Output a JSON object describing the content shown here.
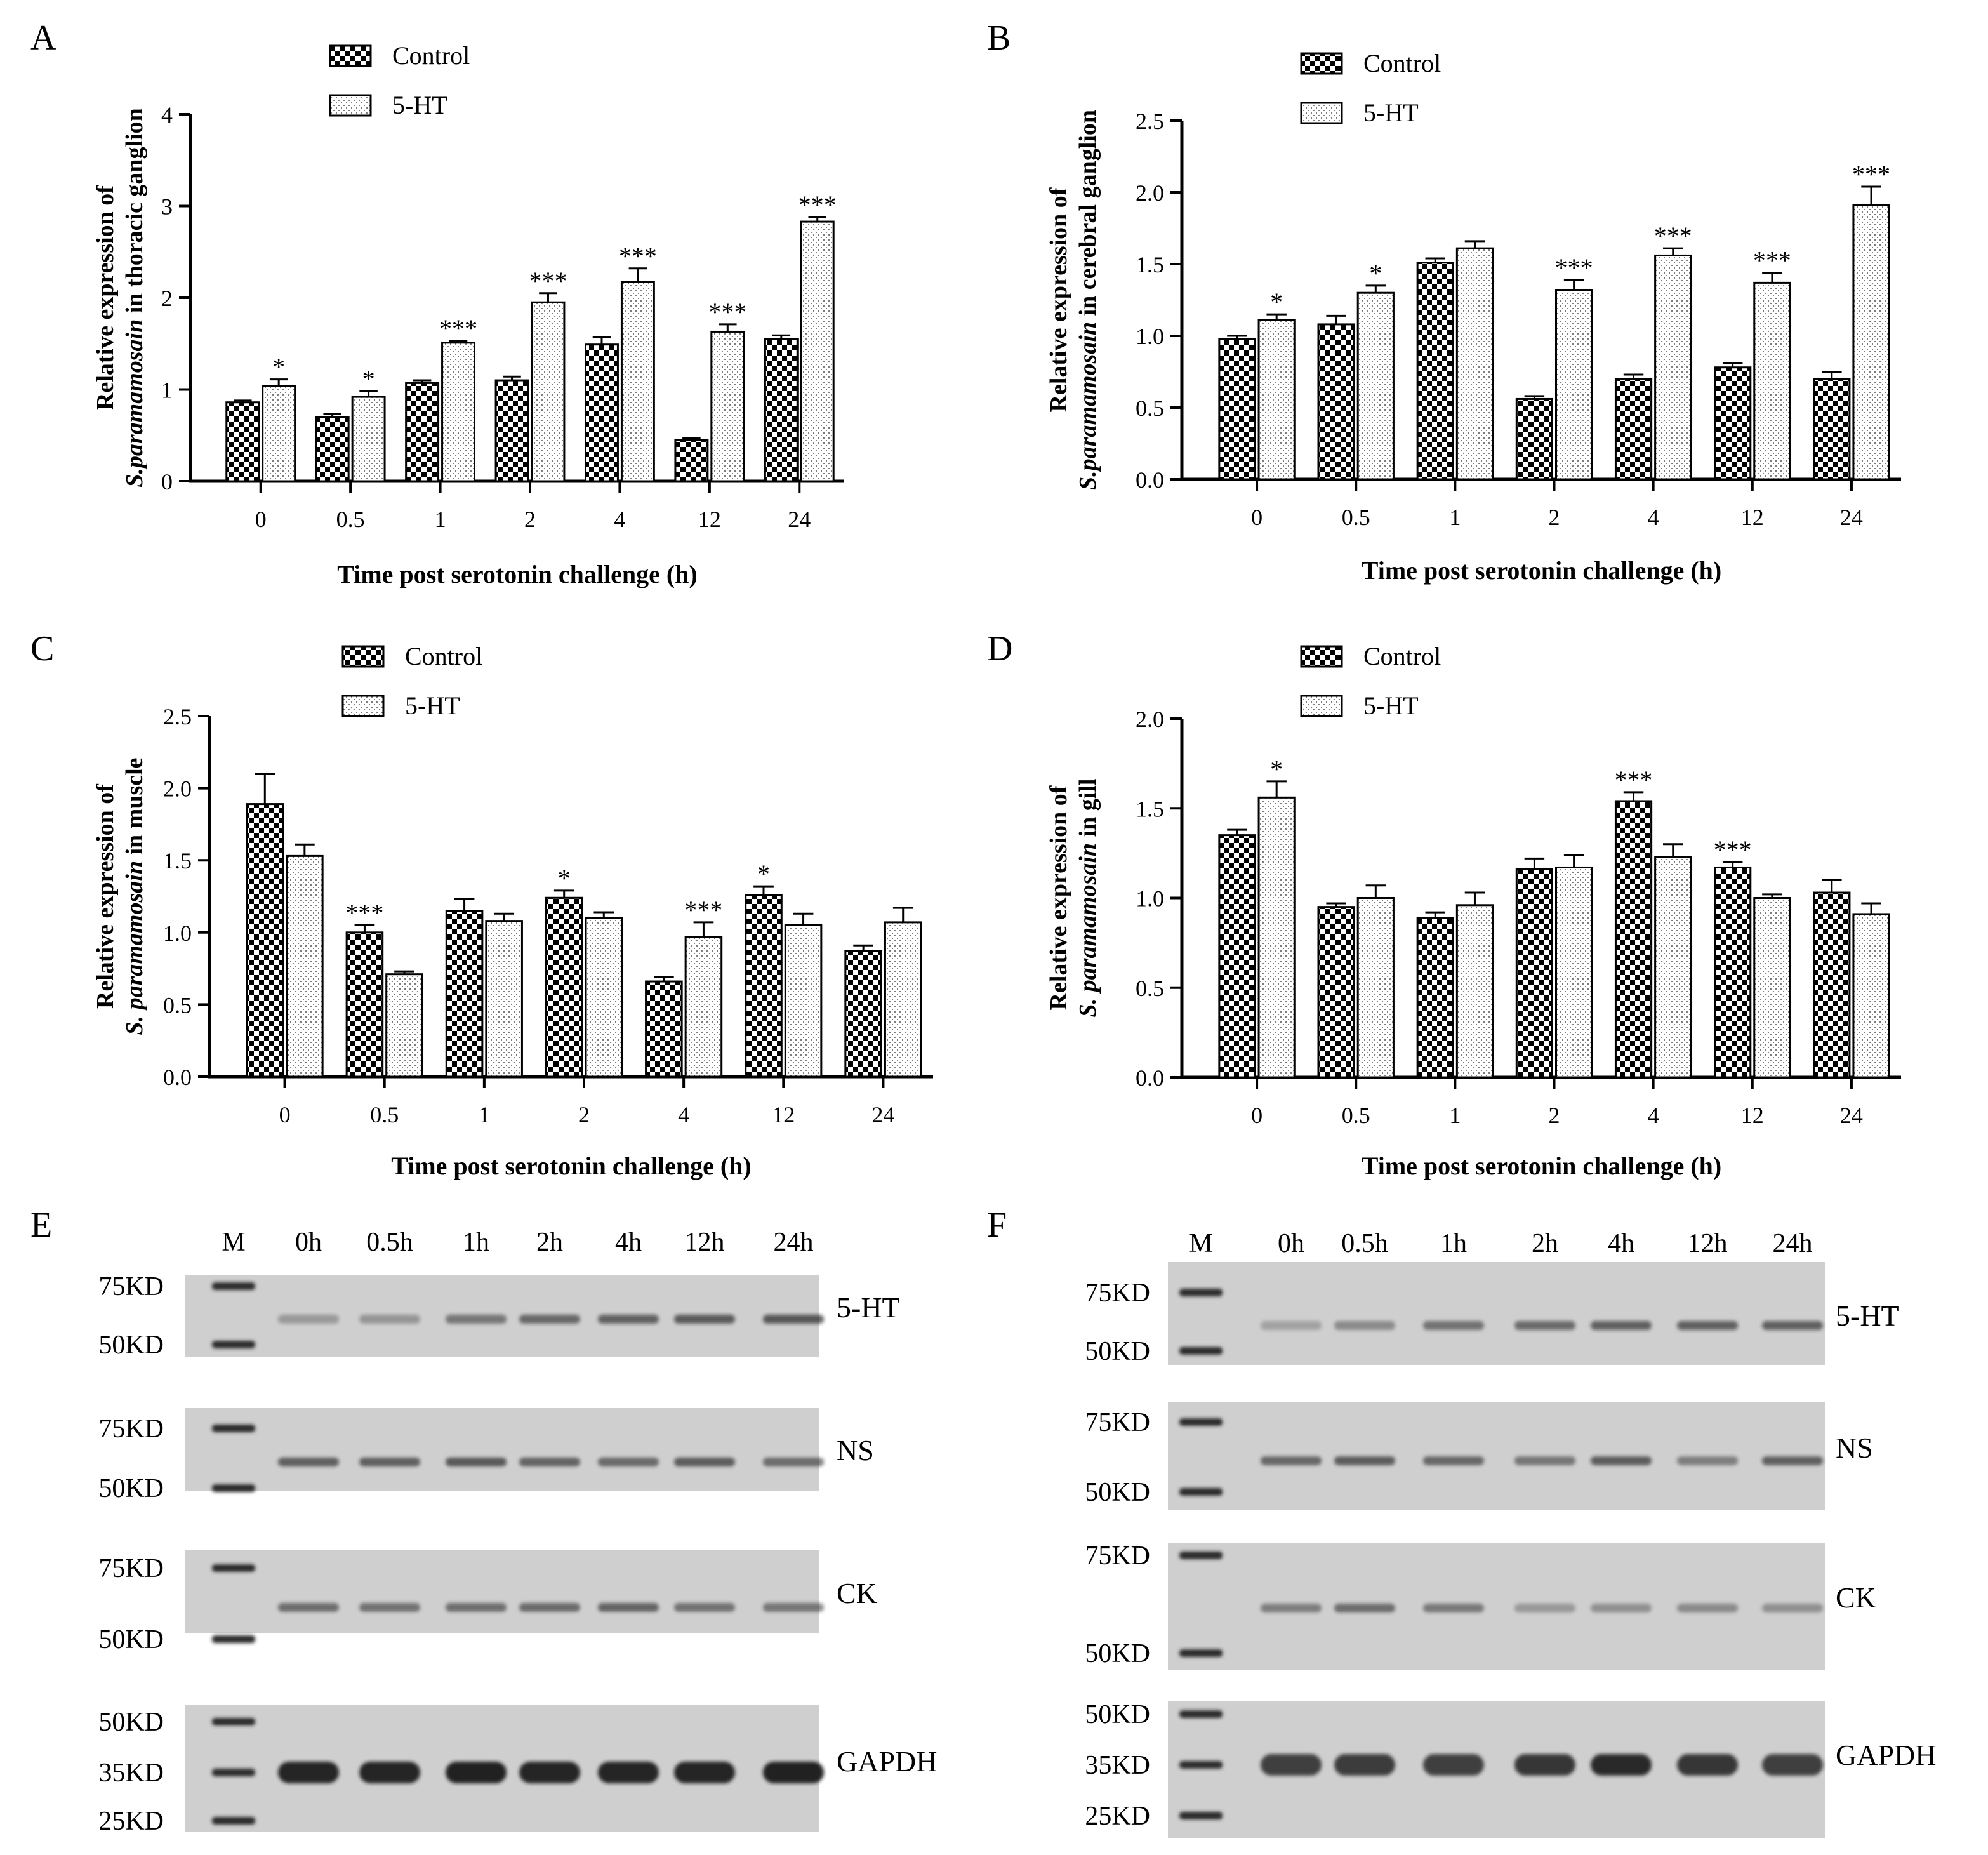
{
  "figure": {
    "colors": {
      "axis": "#000000",
      "control_fill": "checkerboard-black-white",
      "treatment_fill": "light-dotted-white",
      "blot_background": "#cfcfcf",
      "band": "#1a1a1a"
    }
  },
  "chart_data": [
    {
      "panel": "A",
      "type": "bar",
      "categories": [
        "0",
        "0.5",
        "1",
        "2",
        "4",
        "12",
        "24"
      ],
      "series": [
        {
          "name": "Control",
          "values": [
            0.86,
            0.7,
            1.07,
            1.1,
            1.49,
            0.45,
            1.55
          ],
          "errors": [
            0.02,
            0.03,
            0.03,
            0.04,
            0.08,
            0.02,
            0.04
          ]
        },
        {
          "name": "5-HT",
          "values": [
            1.04,
            0.92,
            1.51,
            1.95,
            2.17,
            1.63,
            2.83
          ],
          "errors": [
            0.07,
            0.06,
            0.02,
            0.1,
            0.15,
            0.08,
            0.05
          ]
        }
      ],
      "significance": [
        "*",
        "*",
        "***",
        "***",
        "***",
        "***",
        "***"
      ],
      "significance_on": "5-HT",
      "ylabel_prefix": "Relative expression of",
      "ylabel_italic": "S.paramamosain",
      "ylabel_suffix": " in thoracic ganglion",
      "xlabel": "Time post serotonin challenge (h)",
      "ylim": [
        0,
        4
      ],
      "yticks": [
        "0",
        "1",
        "2",
        "3",
        "4"
      ],
      "legend": "top-center"
    },
    {
      "panel": "B",
      "type": "bar",
      "categories": [
        "0",
        "0.5",
        "1",
        "2",
        "4",
        "12",
        "24"
      ],
      "series": [
        {
          "name": "Control",
          "values": [
            0.98,
            1.08,
            1.51,
            0.56,
            0.7,
            0.78,
            0.7
          ],
          "errors": [
            0.02,
            0.06,
            0.03,
            0.02,
            0.03,
            0.03,
            0.05
          ]
        },
        {
          "name": "5-HT",
          "values": [
            1.11,
            1.3,
            1.61,
            1.32,
            1.56,
            1.37,
            1.91
          ],
          "errors": [
            0.04,
            0.05,
            0.05,
            0.07,
            0.05,
            0.07,
            0.13
          ]
        }
      ],
      "significance": [
        "*",
        "*",
        "",
        "***",
        "***",
        "***",
        "***"
      ],
      "significance_on": "5-HT",
      "ylabel_prefix": "Relative expression of",
      "ylabel_italic": "S.paramamosain",
      "ylabel_suffix": " in cerebral  ganglion",
      "xlabel": "Time post serotonin challenge (h)",
      "ylim": [
        0,
        2.5
      ],
      "yticks": [
        "0.0",
        "0.5",
        "1.0",
        "1.5",
        "2.0",
        "2.5"
      ],
      "legend": "top-center"
    },
    {
      "panel": "C",
      "type": "bar",
      "categories": [
        "0",
        "0.5",
        "1",
        "2",
        "4",
        "12",
        "24"
      ],
      "series": [
        {
          "name": "Control",
          "values": [
            1.89,
            1.0,
            1.15,
            1.24,
            0.66,
            1.26,
            0.87
          ],
          "errors": [
            0.21,
            0.05,
            0.08,
            0.05,
            0.03,
            0.06,
            0.04
          ]
        },
        {
          "name": "5-HT",
          "values": [
            1.53,
            0.71,
            1.08,
            1.1,
            0.97,
            1.05,
            1.07
          ],
          "errors": [
            0.08,
            0.02,
            0.05,
            0.04,
            0.1,
            0.08,
            0.1
          ]
        }
      ],
      "significance": [
        "",
        "***",
        "",
        "*",
        "***",
        "*",
        ""
      ],
      "significance_on": [
        "",
        "Control",
        "",
        "Control",
        "5-HT",
        "Control",
        ""
      ],
      "ylabel_prefix": "Relative expression of",
      "ylabel_italic": "S. paramamosain",
      "ylabel_suffix": " in muscle",
      "xlabel": "Time post serotonin challenge (h)",
      "ylim": [
        0,
        2.5
      ],
      "yticks": [
        "0.0",
        "0.5",
        "1.0",
        "1.5",
        "2.0",
        "2.5"
      ],
      "legend": "top-center"
    },
    {
      "panel": "D",
      "type": "bar",
      "categories": [
        "0",
        "0.5",
        "1",
        "2",
        "4",
        "12",
        "24"
      ],
      "series": [
        {
          "name": "Control",
          "values": [
            1.35,
            0.95,
            0.89,
            1.16,
            1.54,
            1.17,
            1.03
          ],
          "errors": [
            0.03,
            0.02,
            0.03,
            0.06,
            0.05,
            0.03,
            0.07
          ]
        },
        {
          "name": "5-HT",
          "values": [
            1.56,
            1.0,
            0.96,
            1.17,
            1.23,
            1.0,
            0.91
          ],
          "errors": [
            0.09,
            0.07,
            0.07,
            0.07,
            0.07,
            0.02,
            0.06
          ]
        }
      ],
      "significance": [
        "*",
        "",
        "",
        "",
        "***",
        "***",
        ""
      ],
      "significance_on": [
        "5-HT",
        "",
        "",
        "",
        "Control",
        "Control",
        ""
      ],
      "ylabel_prefix": "Relative expression of",
      "ylabel_italic": "S. paramamosain",
      "ylabel_suffix": " in gill",
      "xlabel": "Time post serotonin challenge (h)",
      "ylim": [
        0,
        2.0
      ],
      "yticks": [
        "0.0",
        "0.5",
        "1.0",
        "1.5",
        "2.0"
      ],
      "legend": "top-center"
    }
  ],
  "blots": [
    {
      "panel": "E",
      "lanes": [
        "M",
        "0h",
        "0.5h",
        "1h",
        "2h",
        "4h",
        "12h",
        "24h"
      ],
      "rows": [
        {
          "label": "5-HT",
          "markers": [
            "75KD",
            "50KD"
          ],
          "band_intensity": [
            0.3,
            0.32,
            0.5,
            0.58,
            0.62,
            0.66,
            0.68
          ]
        },
        {
          "label": "NS",
          "markers": [
            "75KD",
            "50KD"
          ],
          "band_intensity": [
            0.62,
            0.62,
            0.66,
            0.6,
            0.56,
            0.64,
            0.55
          ]
        },
        {
          "label": "CK",
          "markers": [
            "75KD",
            "50KD"
          ],
          "band_intensity": [
            0.55,
            0.52,
            0.54,
            0.56,
            0.6,
            0.52,
            0.5
          ]
        },
        {
          "label": "GAPDH",
          "markers": [
            "50KD",
            "35KD",
            "25KD"
          ],
          "band_intensity": [
            0.95,
            0.95,
            0.97,
            0.95,
            0.95,
            0.95,
            0.97
          ]
        }
      ]
    },
    {
      "panel": "F",
      "lanes": [
        "M",
        "0h",
        "0.5h",
        "1h",
        "2h",
        "4h",
        "12h",
        "24h"
      ],
      "rows": [
        {
          "label": "5-HT",
          "markers": [
            "75KD",
            "50KD"
          ],
          "band_intensity": [
            0.25,
            0.38,
            0.52,
            0.56,
            0.62,
            0.62,
            0.62
          ]
        },
        {
          "label": "NS",
          "markers": [
            "75KD",
            "50KD"
          ],
          "band_intensity": [
            0.58,
            0.64,
            0.58,
            0.5,
            0.64,
            0.45,
            0.62
          ]
        },
        {
          "label": "CK",
          "markers": [
            "75KD",
            "50KD"
          ],
          "band_intensity": [
            0.45,
            0.55,
            0.48,
            0.3,
            0.35,
            0.38,
            0.35
          ]
        },
        {
          "label": "GAPDH",
          "markers": [
            "50KD",
            "35KD",
            "25KD"
          ],
          "band_intensity": [
            0.8,
            0.82,
            0.8,
            0.85,
            0.92,
            0.85,
            0.8
          ]
        }
      ]
    }
  ]
}
